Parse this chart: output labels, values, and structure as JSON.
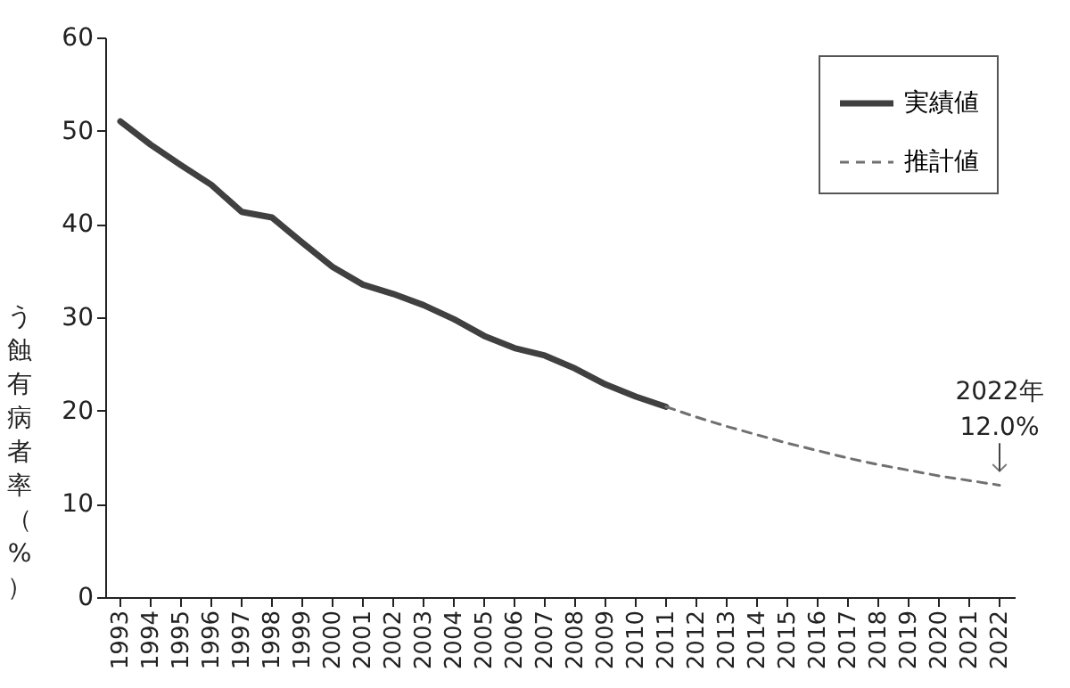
{
  "chart_data": {
    "type": "line",
    "ylabel": "う蝕有病者率（%）",
    "categories": [
      "1993",
      "1994",
      "1995",
      "1996",
      "1997",
      "1998",
      "1999",
      "2000",
      "2001",
      "2002",
      "2003",
      "2004",
      "2005",
      "2006",
      "2007",
      "2008",
      "2009",
      "2010",
      "2011",
      "2012",
      "2013",
      "2014",
      "2015",
      "2016",
      "2017",
      "2018",
      "2019",
      "2020",
      "2021",
      "2022"
    ],
    "series": [
      {
        "name": "実績値",
        "color": "#404040",
        "line_style": "solid",
        "values": [
          51.0,
          48.5,
          46.3,
          44.2,
          41.3,
          40.7,
          38.0,
          35.4,
          33.5,
          32.5,
          31.3,
          29.8,
          28.0,
          26.7,
          25.9,
          24.5,
          22.8,
          21.5,
          20.4,
          null,
          null,
          null,
          null,
          null,
          null,
          null,
          null,
          null,
          null,
          null
        ]
      },
      {
        "name": "推計値",
        "color": "#707070",
        "line_style": "dashed",
        "values": [
          null,
          null,
          null,
          null,
          null,
          null,
          null,
          null,
          null,
          null,
          null,
          null,
          null,
          null,
          null,
          null,
          null,
          null,
          20.4,
          19.3,
          18.3,
          17.4,
          16.5,
          15.7,
          14.9,
          14.2,
          13.6,
          13.0,
          12.5,
          12.0
        ]
      }
    ],
    "ylim": [
      0,
      60
    ],
    "yticks": [
      0,
      10,
      20,
      30,
      40,
      50,
      60
    ],
    "legend": "top right",
    "annotations": [
      {
        "text": "2022年\n12.0%",
        "x": "2022",
        "y": 12.0
      }
    ]
  }
}
